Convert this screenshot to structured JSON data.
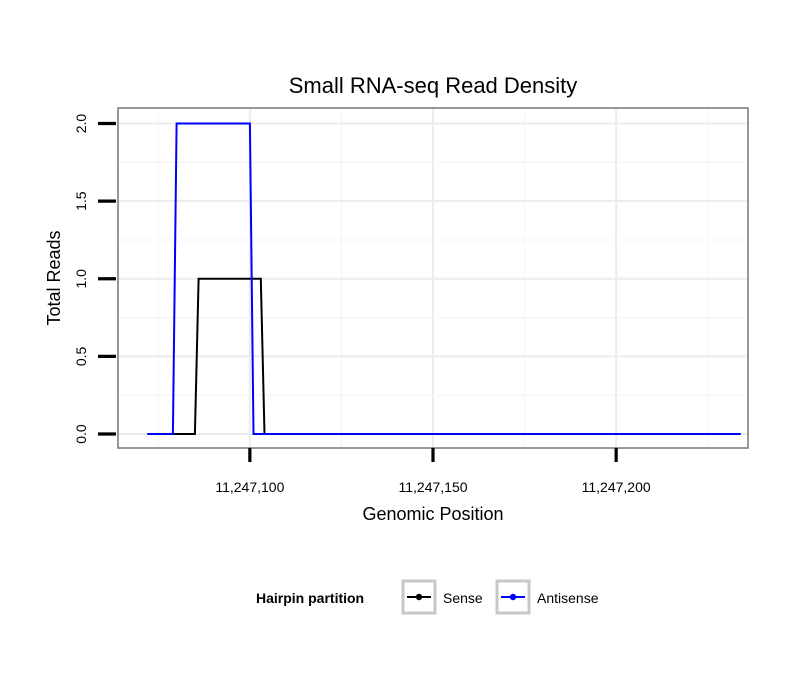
{
  "chart_data": {
    "type": "line",
    "title": "Small RNA-seq Read Density",
    "xlabel": "Genomic Position",
    "ylabel": "Total Reads",
    "xlim": [
      11247064,
      11247236
    ],
    "ylim": [
      -0.09,
      2.1
    ],
    "x_ticks": [
      11247100,
      11247150,
      11247200
    ],
    "x_tick_labels": [
      "11,247,100",
      "11,247,150",
      "11,247,200"
    ],
    "y_ticks": [
      0,
      0.5,
      1,
      1.5,
      2
    ],
    "y_tick_labels": [
      "0.0",
      "0.5",
      "1.0",
      "1.5",
      "2.0"
    ],
    "grid": true,
    "legend": {
      "title": "Hairpin partition",
      "position": "bottom",
      "entries": [
        "Sense",
        "Antisense"
      ]
    },
    "series": [
      {
        "name": "Sense",
        "color": "#000000",
        "x": [
          11247072,
          11247085,
          11247086,
          11247103,
          11247104,
          11247234
        ],
        "y": [
          0,
          0,
          1,
          1,
          0,
          0
        ]
      },
      {
        "name": "Antisense",
        "color": "#0000ff",
        "x": [
          11247072,
          11247079,
          11247080,
          11247100,
          11247101,
          11247234
        ],
        "y": [
          0,
          0,
          2,
          2,
          0,
          0
        ]
      }
    ]
  }
}
